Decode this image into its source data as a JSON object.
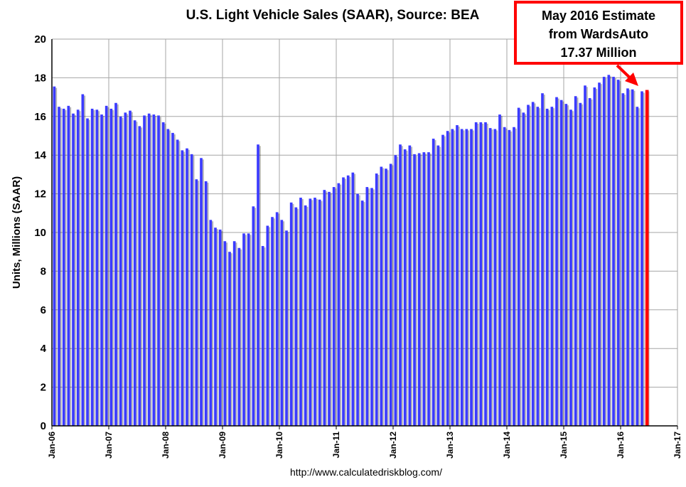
{
  "chart_data": {
    "type": "bar",
    "title": "U.S. Light Vehicle Sales (SAAR), Source: BEA",
    "ylabel": "Units, Millions (SAAR)",
    "xlabel": "",
    "ylim": [
      0,
      20
    ],
    "yticks": [
      "0",
      "2",
      "4",
      "6",
      "8",
      "10",
      "12",
      "14",
      "16",
      "18",
      "20"
    ],
    "xticks": [
      "Jan-06",
      "Jan-07",
      "Jan-08",
      "Jan-09",
      "Jan-10",
      "Jan-11",
      "Jan-12",
      "Jan-13",
      "Jan-14",
      "Jan-15",
      "Jan-16",
      "Jan-17"
    ],
    "grid": true,
    "bar_color": "#3b3bff",
    "highlight_color": "#ff0000",
    "source": "http://www.calculatedriskblog.com/",
    "annotation": {
      "lines": [
        "May 2016 Estimate",
        "from WardsAuto",
        "17.37 Million"
      ],
      "highlight_value": 17.37,
      "border_color": "#ff0000"
    },
    "series": [
      {
        "values": [
          17.55,
          16.5,
          16.4,
          16.55,
          16.15,
          16.35,
          17.15,
          15.9,
          16.4,
          16.35,
          16.1,
          16.55,
          16.4,
          16.7,
          16.0,
          16.2,
          16.3,
          15.8,
          15.5,
          16.05,
          16.15,
          16.1,
          16.05,
          15.7,
          15.35,
          15.15,
          14.8,
          14.25,
          14.35,
          14.05,
          12.75,
          13.85,
          12.65,
          10.65,
          10.25,
          10.15,
          9.55,
          9.0,
          9.55,
          9.2,
          9.95,
          9.95,
          11.35,
          14.55,
          9.3,
          10.35,
          10.8,
          11.05,
          10.65,
          10.1,
          11.55,
          11.3,
          11.8,
          11.4,
          11.75,
          11.8,
          11.7,
          12.2,
          12.1,
          12.35,
          12.55,
          12.85,
          12.95,
          13.1,
          12.0,
          11.65,
          12.35,
          12.3,
          13.05,
          13.4,
          13.3,
          13.55,
          14.0,
          14.55,
          14.3,
          14.5,
          14.05,
          14.1,
          14.15,
          14.15,
          14.85,
          14.5,
          15.05,
          15.25,
          15.35,
          15.55,
          15.35,
          15.35,
          15.35,
          15.7,
          15.7,
          15.7,
          15.4,
          15.35,
          16.1,
          15.45,
          15.3,
          15.45,
          16.45,
          16.2,
          16.6,
          16.75,
          16.5,
          17.2,
          16.4,
          16.5,
          17.0,
          16.85,
          16.65,
          16.35,
          17.05,
          16.7,
          17.6,
          16.95,
          17.5,
          17.75,
          18.05,
          18.15,
          18.05,
          17.9,
          17.2,
          17.45,
          17.4,
          16.5,
          17.3,
          17.37
        ]
      }
    ]
  }
}
